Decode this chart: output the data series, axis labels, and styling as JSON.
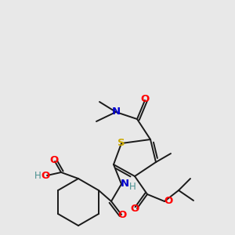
{
  "bg_color": "#e8e8e8",
  "bond_color": "#1a1a1a",
  "atom_colors": {
    "O": "#ff0000",
    "N": "#0000cc",
    "S": "#ccaa00",
    "H": "#4a9090",
    "C": "#1a1a1a"
  }
}
